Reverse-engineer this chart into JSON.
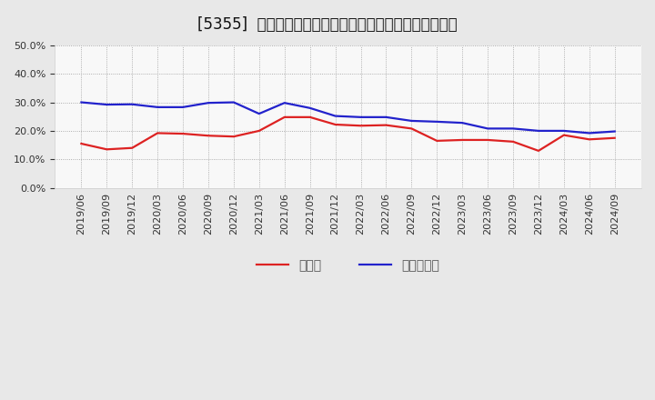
{
  "title": "[5355]  現預金、有利子負債の総資産に対する比率の推移",
  "x_labels": [
    "2019/06",
    "2019/09",
    "2019/12",
    "2020/03",
    "2020/06",
    "2020/09",
    "2020/12",
    "2021/03",
    "2021/06",
    "2021/09",
    "2021/12",
    "2022/03",
    "2022/06",
    "2022/09",
    "2022/12",
    "2023/03",
    "2023/06",
    "2023/09",
    "2023/12",
    "2024/03",
    "2024/06",
    "2024/09"
  ],
  "cash": [
    0.155,
    0.135,
    0.14,
    0.192,
    0.19,
    0.183,
    0.18,
    0.2,
    0.248,
    0.248,
    0.222,
    0.218,
    0.22,
    0.208,
    0.165,
    0.168,
    0.168,
    0.162,
    0.13,
    0.185,
    0.17,
    0.175
  ],
  "debt": [
    0.3,
    0.292,
    0.293,
    0.283,
    0.283,
    0.298,
    0.3,
    0.26,
    0.298,
    0.28,
    0.252,
    0.248,
    0.248,
    0.235,
    0.232,
    0.228,
    0.208,
    0.208,
    0.2,
    0.2,
    0.192,
    0.198
  ],
  "cash_color": "#dd2222",
  "debt_color": "#2222cc",
  "bg_color": "#e8e8e8",
  "plot_bg_color": "#f8f8f8",
  "grid_color": "#999999",
  "ylim": [
    0.0,
    0.5
  ],
  "yticks": [
    0.0,
    0.1,
    0.2,
    0.3,
    0.4,
    0.5
  ],
  "legend_cash": "現預金",
  "legend_debt": "有利子負債",
  "legend_text_color": "#555555",
  "title_fontsize": 12,
  "legend_fontsize": 10,
  "tick_fontsize": 8,
  "line_width": 1.6
}
